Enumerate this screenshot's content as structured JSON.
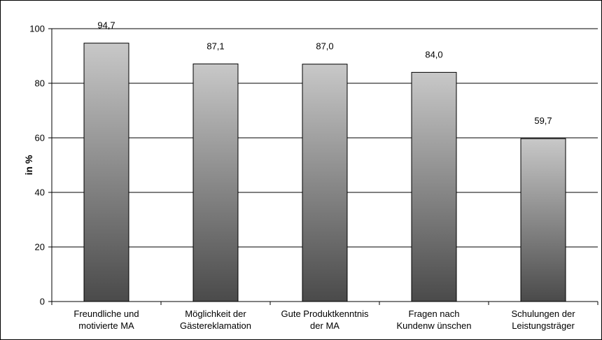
{
  "chart_data": {
    "type": "bar",
    "categories": [
      [
        "Freundliche und",
        "motivierte MA"
      ],
      [
        "Möglichkeit der",
        "Gästereklamation"
      ],
      [
        "Gute Produktkenntnis",
        "der MA"
      ],
      [
        "Fragen nach",
        "Kundenw ünschen"
      ],
      [
        "Schulungen der",
        "Leistungsträger"
      ]
    ],
    "values": [
      94.7,
      87.1,
      87.0,
      84.0,
      59.7
    ],
    "value_labels": [
      "94,7",
      "87,1",
      "87,0",
      "84,0",
      "59,7"
    ],
    "title": "",
    "xlabel": "",
    "ylabel": "in %",
    "ylim": [
      0,
      100
    ],
    "yticks": [
      0,
      20,
      40,
      60,
      80,
      100
    ],
    "grid": true,
    "legend": "none",
    "colors": {
      "bar_top": "#c8c8c8",
      "bar_bottom": "#4a4a4a",
      "grid": "#000000",
      "outline": "#000000"
    }
  }
}
